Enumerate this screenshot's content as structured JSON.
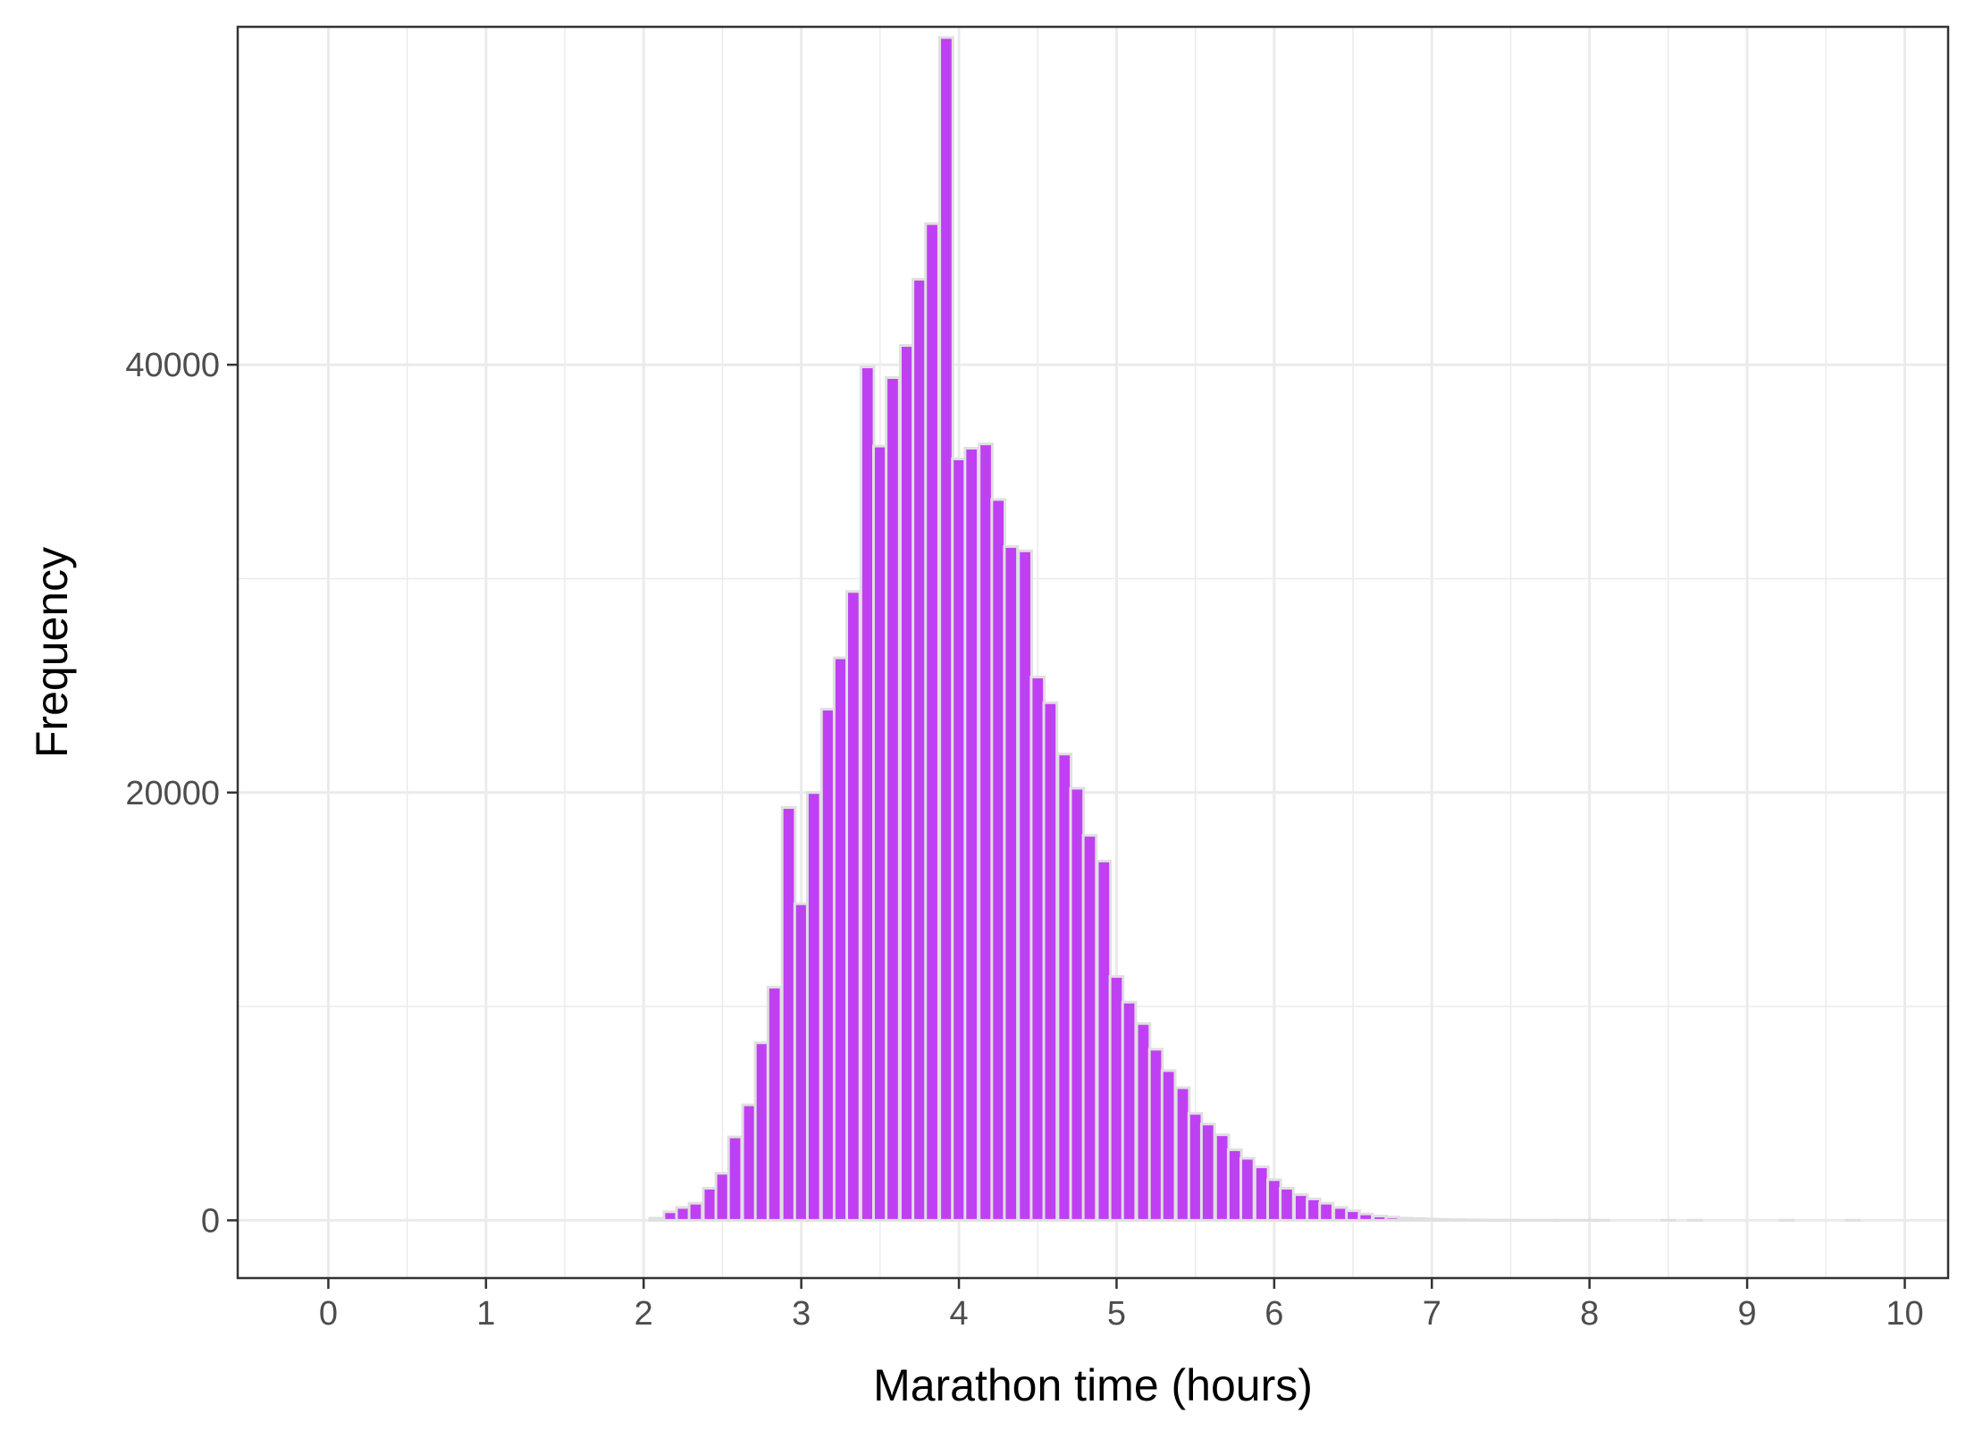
{
  "chart_data": {
    "type": "bar",
    "subtype": "histogram",
    "title": "",
    "xlabel": "Marathon time (hours)",
    "ylabel": "Frequency",
    "xlim": [
      -0.575,
      10.275
    ],
    "ylim": [
      -2700,
      55800
    ],
    "x_ticks": [
      0,
      1,
      2,
      3,
      4,
      5,
      6,
      7,
      8,
      9,
      10
    ],
    "x_tick_labels": [
      "0",
      "1",
      "2",
      "3",
      "4",
      "5",
      "6",
      "7",
      "8",
      "9",
      "10"
    ],
    "y_ticks": [
      0,
      20000,
      40000
    ],
    "y_tick_labels": [
      "0",
      "20000",
      "40000"
    ],
    "grid": true,
    "panel_border": true,
    "bin_width": 0.0833,
    "bins": {
      "x": [
        2.08,
        2.17,
        2.25,
        2.33,
        2.42,
        2.5,
        2.58,
        2.67,
        2.75,
        2.83,
        2.92,
        3.0,
        3.08,
        3.17,
        3.25,
        3.33,
        3.42,
        3.5,
        3.58,
        3.67,
        3.75,
        3.83,
        3.92,
        4.0,
        4.08,
        4.17,
        4.25,
        4.33,
        4.42,
        4.5,
        4.58,
        4.67,
        4.75,
        4.83,
        4.92,
        5.0,
        5.08,
        5.17,
        5.25,
        5.33,
        5.42,
        5.5,
        5.58,
        5.67,
        5.75,
        5.83,
        5.92,
        6.0,
        6.08,
        6.17,
        6.25,
        6.33,
        6.42,
        6.5,
        6.58,
        6.67,
        6.75,
        6.83,
        6.92,
        7.0,
        7.08,
        7.17,
        7.25,
        7.33,
        7.42,
        7.5,
        7.58,
        7.67,
        7.75,
        7.83,
        7.92,
        8.0,
        8.08,
        8.5,
        8.67,
        9.25,
        9.67
      ],
      "y": [
        100,
        400,
        600,
        800,
        1500,
        2200,
        3900,
        5400,
        8300,
        10900,
        19300,
        14800,
        20000,
        23900,
        26300,
        29400,
        39900,
        36200,
        39400,
        40900,
        44000,
        46600,
        55300,
        35600,
        36100,
        36300,
        33700,
        31500,
        31300,
        25400,
        24200,
        21800,
        20200,
        18000,
        16800,
        11400,
        10200,
        9200,
        8000,
        7000,
        6200,
        5000,
        4500,
        4000,
        3300,
        2900,
        2500,
        1900,
        1500,
        1200,
        1000,
        800,
        600,
        450,
        300,
        200,
        150,
        100,
        80,
        60,
        40,
        30,
        20,
        15,
        10,
        10,
        5,
        5,
        5,
        5,
        5,
        5,
        5,
        5,
        5,
        5,
        5
      ]
    },
    "colors": {
      "bar_fill": "#bf40f2",
      "bar_outline": "#e0e0e0",
      "grid": "#ebebeb",
      "panel_border": "#333333",
      "tick_text": "#4d4d4d",
      "tick_mark": "#333333",
      "axis_title": "#000000",
      "background": "#ffffff"
    }
  }
}
